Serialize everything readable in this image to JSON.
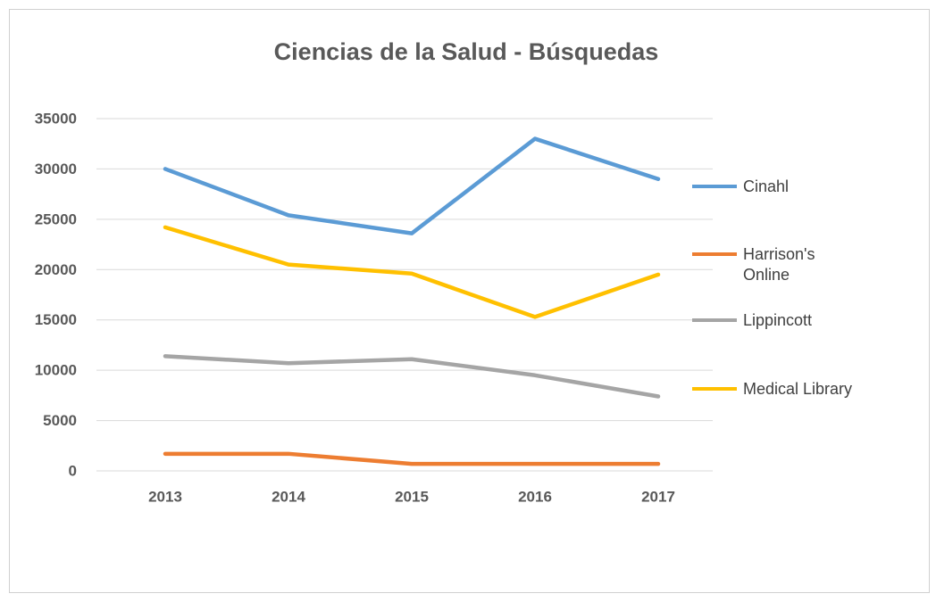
{
  "chart_data": {
    "type": "line",
    "title": "Ciencias de la Salud - Búsquedas",
    "categories": [
      "2013",
      "2014",
      "2015",
      "2016",
      "2017"
    ],
    "series": [
      {
        "name": "Cinahl",
        "color": "#5b9bd5",
        "values": [
          30000,
          25400,
          23600,
          33000,
          29000
        ]
      },
      {
        "name": "Harrison's Online",
        "color": "#ed7d31",
        "values": [
          1700,
          1700,
          700,
          700,
          700
        ]
      },
      {
        "name": "Lippincott",
        "color": "#a5a5a5",
        "values": [
          11400,
          10700,
          11100,
          9500,
          7400
        ]
      },
      {
        "name": "Medical Library",
        "color": "#ffc000",
        "values": [
          24200,
          20500,
          19600,
          15300,
          19500
        ]
      }
    ],
    "ylim": [
      0,
      35000
    ],
    "yticks": [
      0,
      5000,
      10000,
      15000,
      20000,
      25000,
      30000,
      35000
    ],
    "grid": true,
    "legend": "right"
  }
}
